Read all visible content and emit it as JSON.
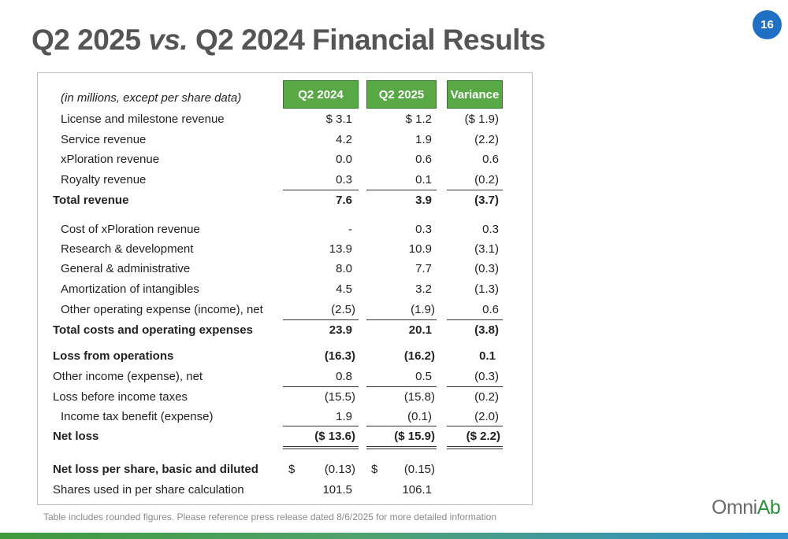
{
  "slide": {
    "title_part1": "Q2 2025 ",
    "title_vs": "vs.",
    "title_part2": " Q2 2024 Financial Results",
    "page_number": "16",
    "footnote": "Table includes rounded figures. Please reference press release dated 8/6/2025 for more detailed information",
    "logo": {
      "omni": "Omni",
      "ab": "Ab"
    }
  },
  "table": {
    "units_note": "(in millions, except per share data)",
    "headers": [
      "Q2 2024",
      "Q2 2025",
      "Variance"
    ],
    "rows": {
      "license": {
        "label": "License and milestone revenue",
        "q2_2024": "$  3.1",
        "q2_2025": "$  1.2",
        "variance": "($  1.9)"
      },
      "service": {
        "label": "Service revenue",
        "q2_2024": "4.2",
        "q2_2025": "1.9",
        "variance": "(2.2)"
      },
      "xploration": {
        "label": "xPloration revenue",
        "q2_2024": "0.0",
        "q2_2025": "0.6",
        "variance": "0.6"
      },
      "royalty": {
        "label": "Royalty revenue",
        "q2_2024": "0.3",
        "q2_2025": "0.1",
        "variance": "(0.2)"
      },
      "total_revenue": {
        "label": "Total revenue",
        "q2_2024": "7.6",
        "q2_2025": "3.9",
        "variance": "(3.7)"
      },
      "cost_xploration": {
        "label": "Cost of xPloration revenue",
        "q2_2024": "-",
        "q2_2025": "0.3",
        "variance": "0.3"
      },
      "rnd": {
        "label": "Research & development",
        "q2_2024": "13.9",
        "q2_2025": "10.9",
        "variance": "(3.1)"
      },
      "gna": {
        "label": "General & administrative",
        "q2_2024": "8.0",
        "q2_2025": "7.7",
        "variance": "(0.3)"
      },
      "amortization": {
        "label": "Amortization of intangibles",
        "q2_2024": "4.5",
        "q2_2025": "3.2",
        "variance": "(1.3)"
      },
      "other_opex": {
        "label": "Other operating expense (income), net",
        "q2_2024": "(2.5)",
        "q2_2025": "(1.9)",
        "variance": "0.6"
      },
      "total_costs": {
        "label": "Total costs and operating expenses",
        "q2_2024": "23.9",
        "q2_2025": "20.1",
        "variance": "(3.8)"
      },
      "loss_ops": {
        "label": "Loss from operations",
        "q2_2024": "(16.3)",
        "q2_2025": "(16.2)",
        "variance": "0.1"
      },
      "other_income": {
        "label": "Other income (expense), net",
        "q2_2024": "0.8",
        "q2_2025": "0.5",
        "variance": "(0.3)"
      },
      "loss_before_tax": {
        "label": "Loss before income taxes",
        "q2_2024": "(15.5)",
        "q2_2025": "(15.8)",
        "variance": "(0.2)"
      },
      "tax_benefit": {
        "label": "Income tax benefit (expense)",
        "q2_2024": "1.9",
        "q2_2025": "(0.1)",
        "variance": "(2.0)"
      },
      "net_loss": {
        "label": "Net loss",
        "q2_2024": "($  13.6)",
        "q2_2025": "($  15.9)",
        "variance": "($  2.2)"
      },
      "eps": {
        "label": "Net loss per share, basic and diluted",
        "currency": "$",
        "q2_2024": "(0.13)",
        "q2_2025": "(0.15)"
      },
      "shares": {
        "label": "Shares used in per share calculation",
        "q2_2024": "101.5",
        "q2_2025": "106.1"
      }
    }
  }
}
